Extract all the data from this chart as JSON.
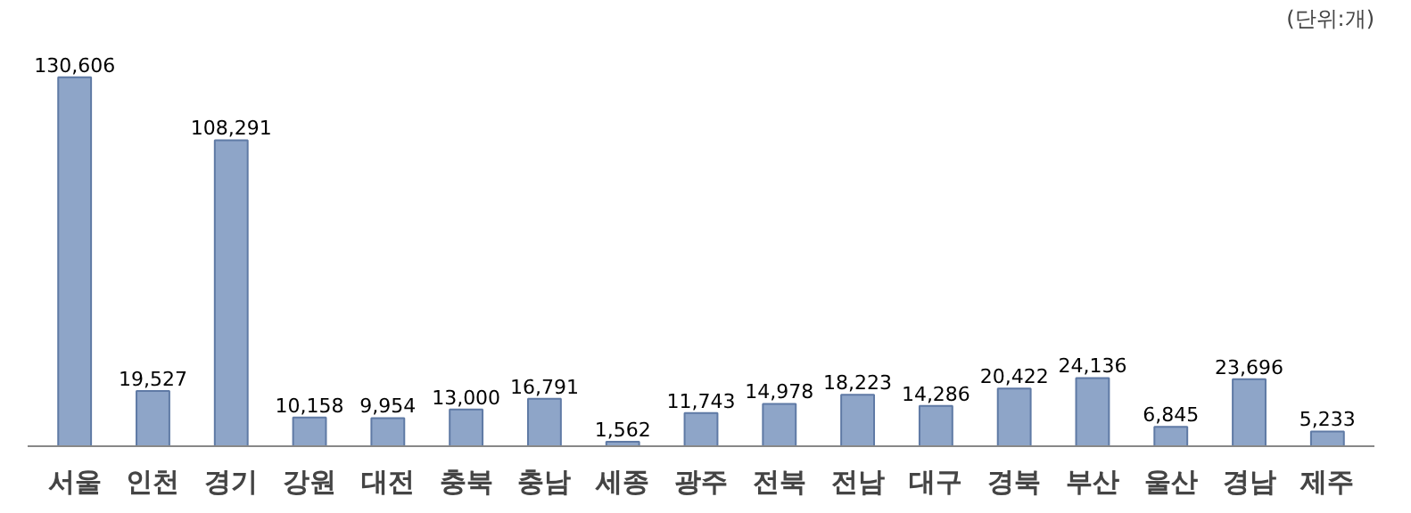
{
  "chart_data": {
    "type": "bar",
    "categories": [
      "서울",
      "인천",
      "경기",
      "강원",
      "대전",
      "충북",
      "충남",
      "세종",
      "광주",
      "전북",
      "전남",
      "대구",
      "경북",
      "부산",
      "울산",
      "경남",
      "제주"
    ],
    "values": [
      130606,
      19527,
      108291,
      10158,
      9954,
      13000,
      16791,
      1562,
      11743,
      14978,
      18223,
      14286,
      20422,
      24136,
      6845,
      23696,
      5233
    ],
    "color": "#8ea5c8",
    "value_labels": [
      "130,606",
      "19,527",
      "108,291",
      "10,158",
      "9,954",
      "13,000",
      "16,791",
      "1,562",
      "11,743",
      "14,978",
      "18,223",
      "14,286",
      "20,422",
      "24,136",
      "6,845",
      "23,696",
      "5,233"
    ],
    "annotations": [
      "(단위:개)"
    ]
  }
}
